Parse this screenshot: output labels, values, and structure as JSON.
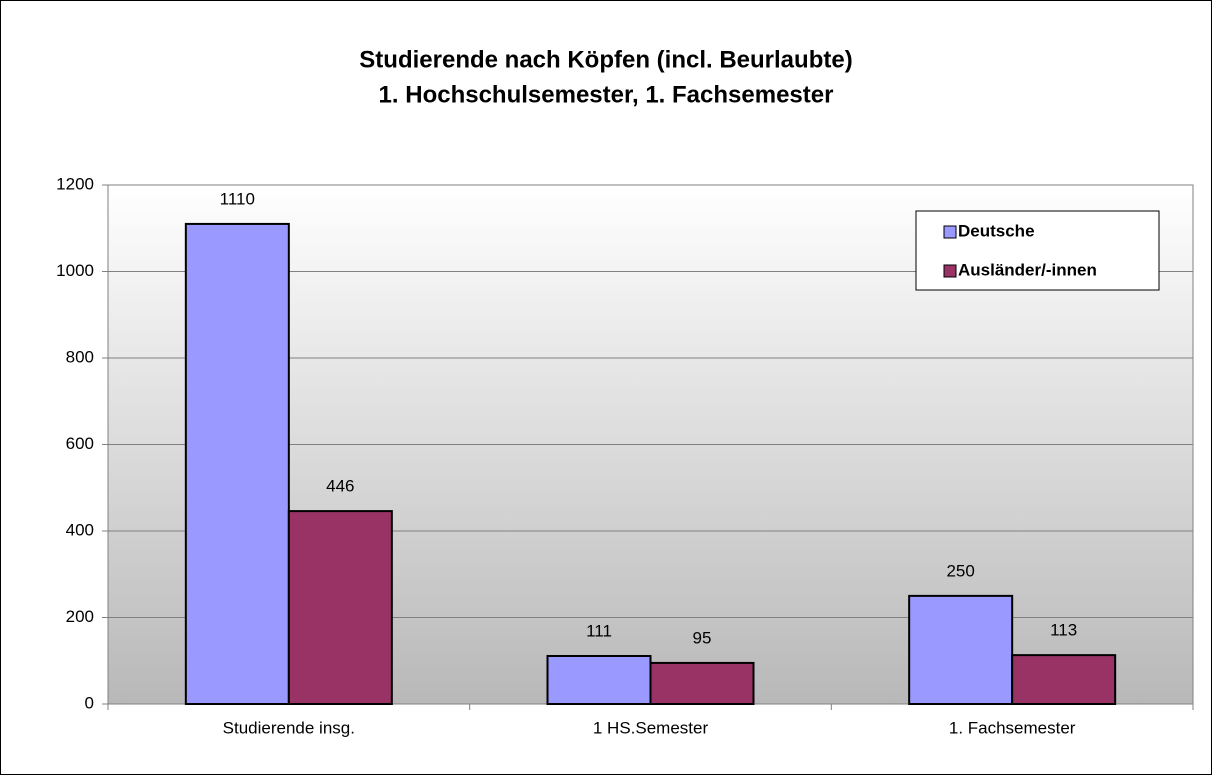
{
  "chart_data": {
    "type": "bar",
    "title": "Studierende nach Köpfen (incl. Beurlaubte)",
    "subtitle": "1. Hochschulsemester, 1. Fachsemester",
    "categories": [
      "Studierende insg.",
      "1 HS.Semester",
      "1. Fachsemester"
    ],
    "series": [
      {
        "name": "Deutsche",
        "color": "#9999ff",
        "values": [
          1110,
          111,
          250
        ]
      },
      {
        "name": "Ausländer/-innen",
        "color": "#993366",
        "values": [
          446,
          95,
          113
        ]
      }
    ],
    "ylim": [
      0,
      1200
    ],
    "yticks": [
      0,
      200,
      400,
      600,
      800,
      1000,
      1200
    ],
    "grid": true,
    "legend": "top-right"
  }
}
